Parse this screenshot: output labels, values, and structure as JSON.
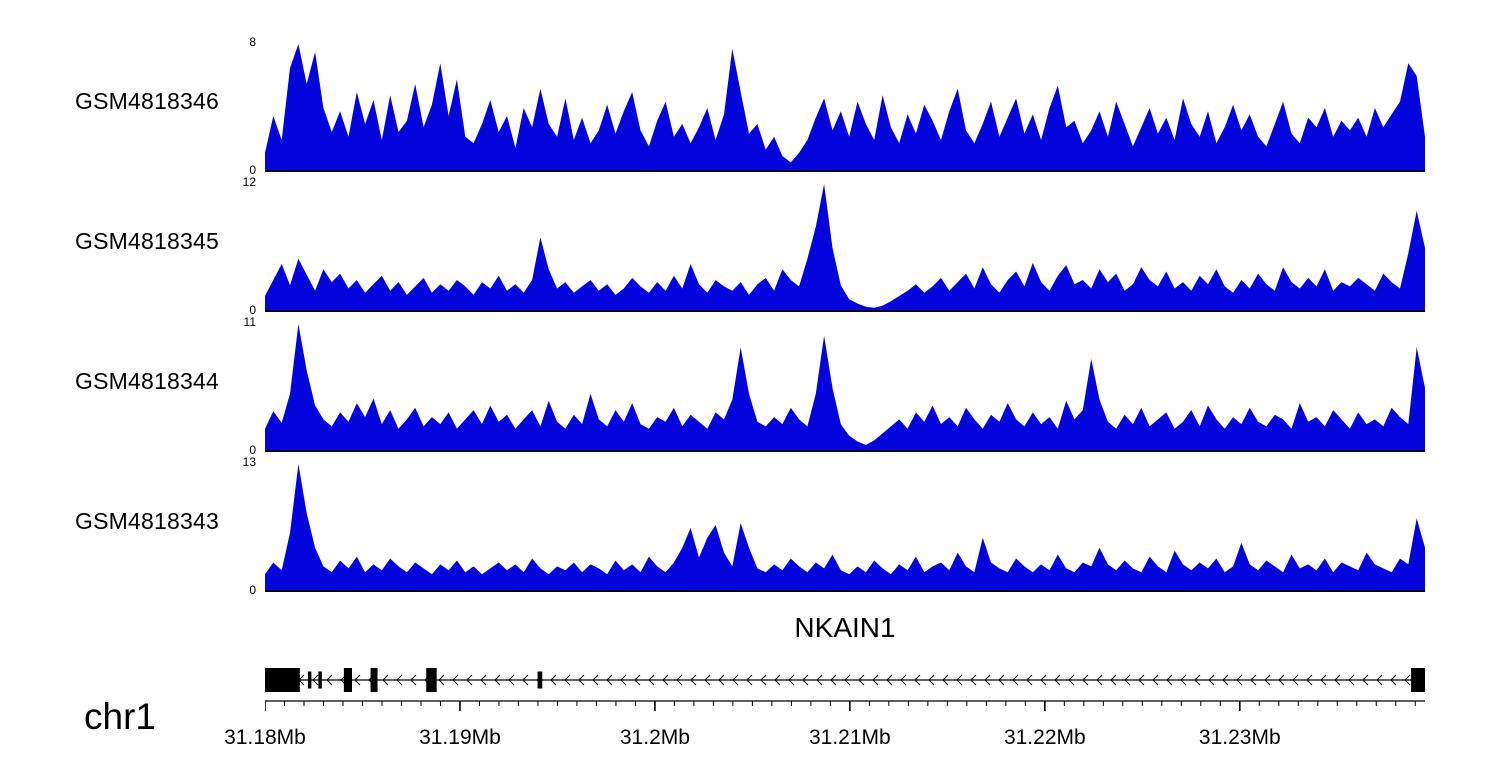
{
  "chart_data": {
    "type": "area",
    "title": "",
    "color": "#0404dd",
    "x_range_mb": [
      31.18,
      31.2395
    ],
    "grid": false,
    "series": [
      {
        "name": "GSM4818346",
        "ymax": 8,
        "ymin_label": "0",
        "values": [
          1.2,
          3.5,
          2.0,
          6.5,
          8.0,
          5.5,
          7.5,
          4.0,
          2.5,
          3.8,
          2.2,
          5.0,
          3.0,
          4.5,
          2.0,
          4.8,
          2.5,
          3.2,
          5.5,
          2.8,
          4.2,
          6.8,
          3.5,
          5.8,
          2.2,
          1.8,
          3.0,
          4.5,
          2.5,
          3.5,
          1.5,
          4.0,
          2.8,
          5.2,
          3.0,
          2.2,
          4.6,
          2.0,
          3.4,
          1.8,
          2.6,
          4.2,
          2.4,
          3.8,
          5.0,
          2.6,
          1.6,
          3.2,
          4.4,
          2.2,
          3.0,
          1.8,
          2.8,
          4.0,
          2.0,
          3.6,
          7.7,
          5.0,
          2.4,
          3.0,
          1.4,
          2.2,
          1.0,
          0.6,
          1.2,
          2.0,
          3.4,
          4.6,
          2.6,
          3.8,
          2.2,
          4.4,
          3.0,
          2.0,
          4.8,
          2.8,
          1.8,
          3.6,
          2.4,
          4.2,
          3.2,
          2.0,
          3.8,
          5.2,
          2.6,
          1.8,
          3.0,
          4.4,
          2.2,
          3.4,
          4.6,
          2.4,
          3.6,
          2.0,
          4.0,
          5.4,
          2.8,
          3.2,
          1.8,
          2.6,
          3.8,
          2.2,
          4.4,
          3.0,
          1.6,
          2.8,
          4.0,
          2.4,
          3.4,
          2.0,
          4.6,
          3.0,
          2.2,
          3.8,
          1.8,
          2.8,
          4.2,
          2.6,
          3.6,
          2.2,
          1.6,
          3.0,
          4.4,
          2.4,
          1.8,
          3.4,
          2.8,
          4.0,
          2.2,
          3.2,
          2.6,
          3.4,
          2.2,
          4.0,
          2.8,
          3.6,
          4.4,
          6.8,
          6.0,
          2.2
        ]
      },
      {
        "name": "GSM4818345",
        "ymax": 12,
        "ymin_label": "0",
        "values": [
          1.5,
          3.0,
          4.5,
          2.5,
          5.0,
          3.5,
          2.0,
          4.0,
          2.8,
          3.6,
          2.2,
          3.0,
          1.8,
          2.6,
          3.4,
          2.0,
          2.8,
          1.6,
          2.4,
          3.2,
          1.8,
          2.6,
          2.0,
          3.0,
          2.4,
          1.6,
          2.8,
          2.2,
          3.4,
          2.0,
          2.6,
          1.8,
          3.0,
          7.0,
          4.0,
          2.2,
          2.8,
          1.8,
          2.4,
          3.0,
          2.0,
          2.6,
          1.6,
          2.2,
          3.2,
          2.4,
          1.8,
          2.8,
          2.0,
          3.4,
          2.2,
          4.5,
          2.6,
          1.8,
          3.0,
          2.4,
          2.0,
          2.8,
          1.6,
          2.6,
          3.2,
          2.0,
          4.0,
          3.0,
          2.4,
          5.0,
          8.0,
          12.0,
          6.0,
          2.5,
          1.2,
          0.8,
          0.5,
          0.4,
          0.6,
          1.0,
          1.5,
          2.0,
          2.6,
          1.8,
          2.4,
          3.2,
          2.0,
          2.8,
          3.6,
          2.2,
          4.2,
          2.6,
          1.8,
          3.0,
          3.8,
          2.4,
          4.6,
          2.8,
          2.0,
          3.4,
          4.4,
          2.6,
          3.0,
          2.2,
          4.0,
          2.8,
          3.6,
          2.0,
          2.6,
          4.2,
          3.0,
          2.4,
          3.8,
          2.2,
          2.8,
          2.0,
          3.4,
          2.6,
          4.0,
          2.4,
          1.8,
          3.0,
          2.2,
          3.6,
          2.6,
          2.0,
          4.2,
          2.8,
          2.2,
          3.2,
          2.4,
          4.0,
          2.0,
          2.8,
          2.4,
          3.2,
          2.6,
          2.0,
          3.6,
          2.8,
          2.2,
          5.5,
          9.5,
          6.0
        ]
      },
      {
        "name": "GSM4818344",
        "ymax": 11,
        "ymin_label": "0",
        "values": [
          2.0,
          3.5,
          2.5,
          5.0,
          11.0,
          7.0,
          4.0,
          2.8,
          2.2,
          3.4,
          2.6,
          4.2,
          3.0,
          4.6,
          2.4,
          3.6,
          2.0,
          2.8,
          3.8,
          2.2,
          3.0,
          2.4,
          3.4,
          2.0,
          2.8,
          3.6,
          2.4,
          4.0,
          2.6,
          3.2,
          2.0,
          2.8,
          3.6,
          2.2,
          4.4,
          2.6,
          2.0,
          3.2,
          2.4,
          5.0,
          2.8,
          2.2,
          3.6,
          2.6,
          4.2,
          2.4,
          2.0,
          3.0,
          2.6,
          3.8,
          2.2,
          3.2,
          2.6,
          2.0,
          3.4,
          2.8,
          4.5,
          9.0,
          5.0,
          2.6,
          2.2,
          3.0,
          2.4,
          3.8,
          2.8,
          2.2,
          5.0,
          10.0,
          5.5,
          2.4,
          1.4,
          0.9,
          0.6,
          1.0,
          1.6,
          2.2,
          2.8,
          2.0,
          3.4,
          2.6,
          4.0,
          2.4,
          3.0,
          2.2,
          3.8,
          2.8,
          2.0,
          3.2,
          2.6,
          4.2,
          2.8,
          2.2,
          3.4,
          2.4,
          3.0,
          2.0,
          4.4,
          2.8,
          3.6,
          8.0,
          4.5,
          2.6,
          2.0,
          3.2,
          2.4,
          3.8,
          2.2,
          2.8,
          3.4,
          2.0,
          2.6,
          3.6,
          2.2,
          4.0,
          2.8,
          2.0,
          3.0,
          2.4,
          3.8,
          2.6,
          2.2,
          3.2,
          2.8,
          2.0,
          4.2,
          2.6,
          3.0,
          2.2,
          3.6,
          2.8,
          2.0,
          3.4,
          2.4,
          2.8,
          2.2,
          3.8,
          3.0,
          2.4,
          9.0,
          5.5
        ]
      },
      {
        "name": "GSM4818343",
        "ymax": 13,
        "ymin_label": "0",
        "values": [
          1.8,
          3.0,
          2.2,
          6.0,
          13.0,
          8.0,
          4.5,
          2.6,
          2.0,
          3.2,
          2.4,
          3.6,
          2.0,
          2.8,
          2.2,
          3.4,
          2.6,
          2.0,
          3.0,
          2.4,
          1.8,
          2.8,
          2.2,
          3.2,
          2.0,
          2.6,
          1.8,
          2.4,
          3.0,
          2.2,
          2.8,
          2.0,
          3.4,
          2.4,
          1.8,
          2.6,
          2.2,
          3.0,
          2.0,
          2.8,
          2.4,
          1.8,
          3.2,
          2.2,
          2.8,
          2.0,
          3.6,
          2.6,
          2.0,
          3.0,
          4.5,
          6.5,
          3.5,
          5.5,
          6.8,
          4.0,
          2.6,
          7.0,
          4.5,
          2.4,
          2.0,
          2.8,
          2.2,
          3.4,
          2.6,
          2.0,
          3.0,
          2.4,
          3.8,
          2.2,
          1.8,
          2.6,
          2.0,
          3.2,
          2.4,
          1.8,
          2.8,
          2.2,
          3.6,
          2.0,
          2.6,
          3.0,
          2.2,
          4.0,
          2.6,
          2.0,
          5.5,
          3.0,
          2.4,
          2.0,
          3.4,
          2.6,
          2.0,
          2.8,
          2.2,
          3.8,
          2.4,
          2.0,
          3.0,
          2.6,
          4.5,
          2.8,
          2.2,
          3.2,
          2.4,
          2.0,
          3.6,
          2.6,
          2.0,
          4.2,
          2.8,
          2.2,
          3.0,
          2.4,
          3.4,
          2.0,
          2.6,
          5.0,
          2.8,
          2.2,
          3.2,
          2.6,
          2.0,
          3.8,
          2.4,
          2.8,
          2.2,
          3.4,
          2.0,
          3.0,
          2.6,
          2.2,
          4.0,
          2.8,
          2.4,
          2.0,
          3.4,
          2.8,
          7.5,
          4.5
        ]
      }
    ],
    "gene_track": {
      "gene": "NKAIN1",
      "chrom": "chr1",
      "strand": "-",
      "exons_frac": [
        {
          "s": 0.0,
          "e": 0.03,
          "tall": true
        },
        {
          "s": 0.037,
          "e": 0.04,
          "tall": false
        },
        {
          "s": 0.046,
          "e": 0.049,
          "tall": false
        },
        {
          "s": 0.068,
          "e": 0.075,
          "tall": true
        },
        {
          "s": 0.091,
          "e": 0.097,
          "tall": true
        },
        {
          "s": 0.139,
          "e": 0.148,
          "tall": true
        },
        {
          "s": 0.235,
          "e": 0.239,
          "tall": false
        },
        {
          "s": 0.988,
          "e": 1.0,
          "tall": true
        }
      ]
    },
    "axis": {
      "start_mb": 31.18,
      "end_mb": 31.2395,
      "minor_tick_step_mb": 0.001,
      "ticks": [
        {
          "v": 31.18,
          "label": "31.18Mb"
        },
        {
          "v": 31.19,
          "label": "31.19Mb"
        },
        {
          "v": 31.2,
          "label": "31.2Mb"
        },
        {
          "v": 31.21,
          "label": "31.21Mb"
        },
        {
          "v": 31.22,
          "label": "31.22Mb"
        },
        {
          "v": 31.23,
          "label": "31.23Mb"
        }
      ]
    }
  }
}
